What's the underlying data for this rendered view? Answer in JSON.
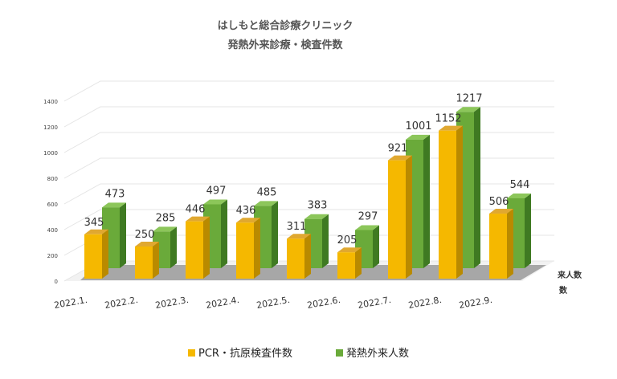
{
  "chart_data": {
    "type": "bar",
    "title": "はしもと総合診療クリニック",
    "subtitle": "発熱外来診療・検査件数",
    "categories": [
      "2022.1.",
      "2022.2.",
      "2022.3.",
      "2022.4.",
      "2022.5.",
      "2022.6.",
      "2022.7.",
      "2022.8.",
      "2022.9."
    ],
    "series": [
      {
        "name": "PCR・抗原検査件数",
        "color": "#f5b800",
        "values": [
          345,
          250,
          446,
          436,
          311,
          205,
          921,
          1152,
          506
        ]
      },
      {
        "name": "発熱外来人数",
        "color": "#6aaa3a",
        "values": [
          473,
          285,
          497,
          485,
          383,
          297,
          1001,
          1217,
          544
        ]
      }
    ],
    "ylim": [
      0,
      1400
    ],
    "yticks": [
      0,
      200,
      400,
      600,
      800,
      1000,
      1200,
      1400
    ],
    "grid": true,
    "legend": "bottom",
    "side_labels": [
      "来人数",
      "数"
    ],
    "style": "3d"
  }
}
